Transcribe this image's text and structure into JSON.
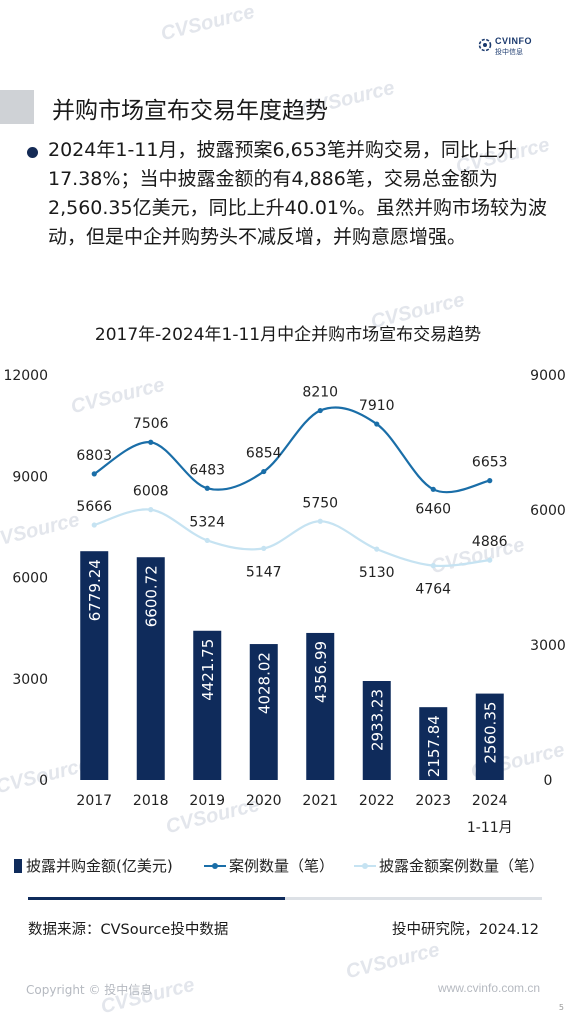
{
  "header": {
    "logo_name": "CVINFO",
    "logo_sub": "投中信息",
    "page_title": "并购市场宣布交易年度趋势",
    "bullet_text": "2024年1-11月，披露预案6,653笔并购交易，同比上升17.38%；当中披露金额的有4,886笔，交易总金额为2,560.35亿美元，同比上升40.01%。虽然并购市场较为波动，但是中企并购势头不减反增，并购意愿增强。"
  },
  "watermark": "CVSource",
  "chart_data": {
    "type": "bar",
    "title": "2017年-2024年1-11月中企并购市场宣布交易趋势",
    "categories": [
      "2017",
      "2018",
      "2019",
      "2020",
      "2021",
      "2022",
      "2023",
      "2024"
    ],
    "last_category_sub": "1-11月",
    "left_axis": {
      "ticks": [
        "12000",
        "9000",
        "6000",
        "3000",
        "0"
      ],
      "range": [
        0,
        12000
      ]
    },
    "right_axis": {
      "ticks": [
        "9000",
        "6000",
        "3000",
        "0"
      ],
      "range": [
        0,
        9000
      ]
    },
    "series": [
      {
        "name": "披露并购金额(亿美元)",
        "type": "bar",
        "axis": "left",
        "color": "#0f2b5b",
        "values": [
          6779.24,
          6600.72,
          4421.75,
          4028.02,
          4356.99,
          2933.23,
          2157.84,
          2560.35
        ],
        "labels": [
          "6779.24",
          "6600.72",
          "4421.75",
          "4028.02",
          "4356.99",
          "2933.23",
          "2157.84",
          "2560.35"
        ]
      },
      {
        "name": "案例数量（笔）",
        "type": "line",
        "axis": "right",
        "color": "#1a6ea8",
        "values": [
          6803,
          7506,
          6483,
          6854,
          8210,
          7910,
          6460,
          6653
        ]
      },
      {
        "name": "披露金额案例数量（笔）",
        "type": "line",
        "axis": "right",
        "color": "#c6e3f2",
        "values": [
          5666,
          6008,
          5324,
          5147,
          5750,
          5130,
          4764,
          4886
        ]
      }
    ]
  },
  "footer": {
    "source": "数据来源：CVSource投中数据",
    "research": "投中研究院，2024.12",
    "copyright": "Copyright © 投中信息",
    "website": "www.cvinfo.com.cn",
    "page_num": "5",
    "progress": 0.5
  }
}
